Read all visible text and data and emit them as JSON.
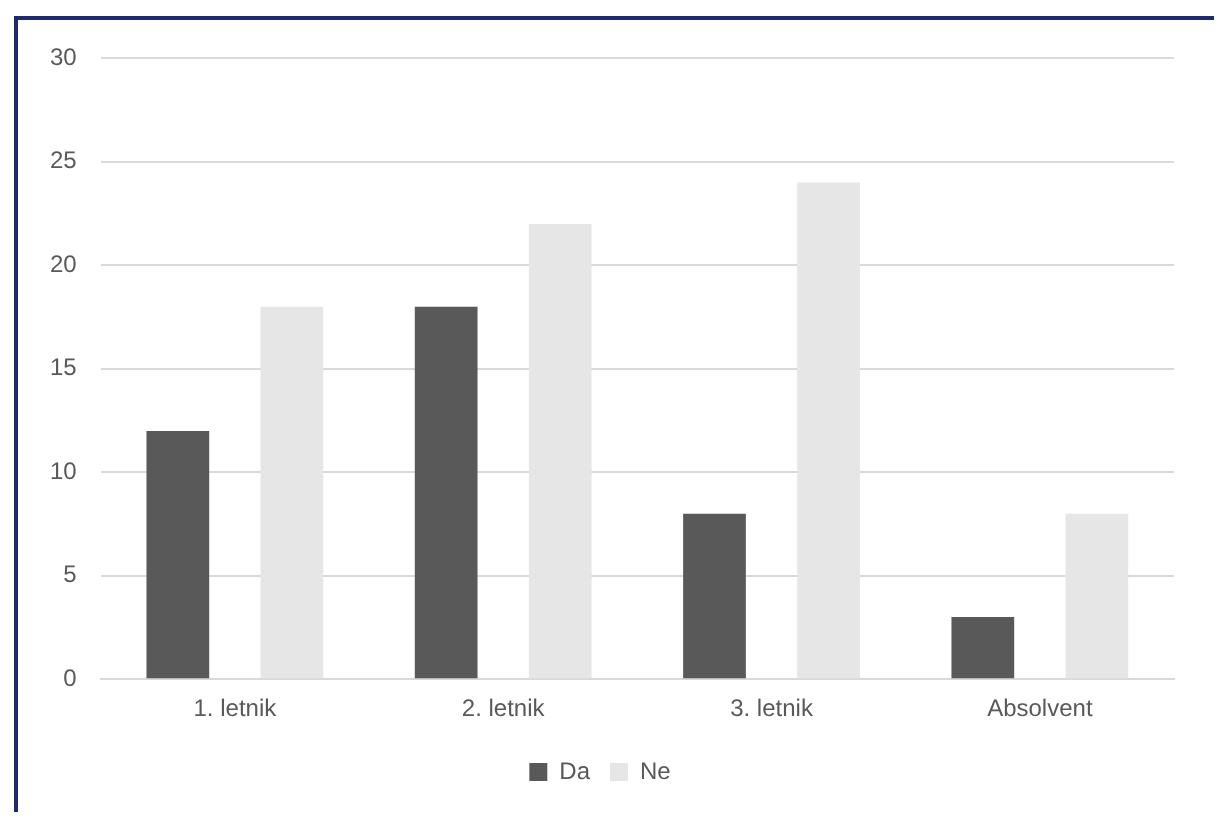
{
  "chart_data": {
    "type": "bar",
    "categories": [
      "1. letnik",
      "2. letnik",
      "3. letnik",
      "Absolvent"
    ],
    "series": [
      {
        "name": "Da",
        "color": "#595959",
        "values": [
          12,
          18,
          8,
          3
        ]
      },
      {
        "name": "Ne",
        "color": "#e6e6e6",
        "values": [
          18,
          22,
          24,
          8
        ]
      }
    ],
    "ylim": [
      0,
      30
    ],
    "yticks": [
      0,
      5,
      10,
      15,
      20,
      25,
      30
    ],
    "grid": "y",
    "legend": "bottom"
  }
}
